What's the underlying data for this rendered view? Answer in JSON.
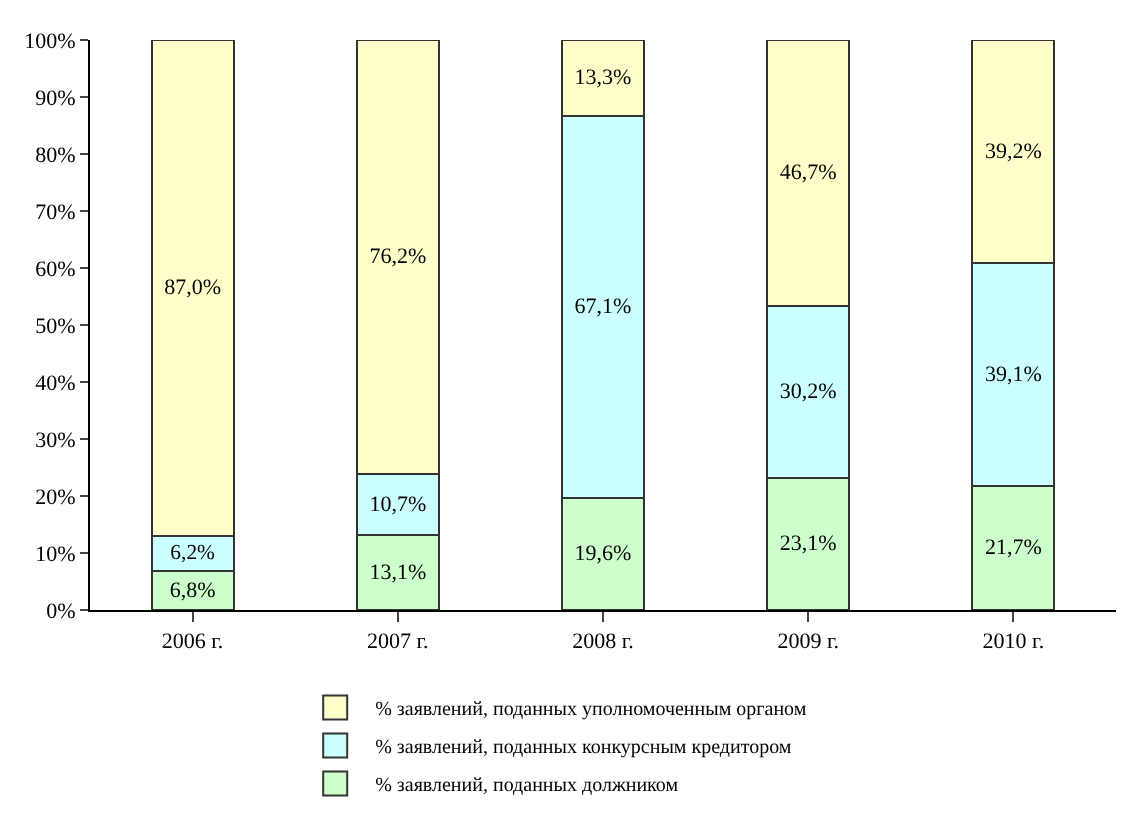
{
  "chart_data": {
    "type": "bar",
    "stacked": true,
    "categories": [
      "2006 г.",
      "2007 г.",
      "2008 г.",
      "2009 г.",
      "2010 г."
    ],
    "series": [
      {
        "name": "% заявлений, поданных должником",
        "color": "#ccffcc",
        "values": [
          6.8,
          13.1,
          19.6,
          23.1,
          21.7
        ],
        "value_labels": [
          "6,8%",
          "13,1%",
          "19,6%",
          "23,1%",
          "21,7%"
        ]
      },
      {
        "name": "% заявлений, поданных конкурсным кредитором",
        "color": "#ccffff",
        "values": [
          6.2,
          10.7,
          67.1,
          30.2,
          39.1
        ],
        "value_labels": [
          "6,2%",
          "10,7%",
          "67,1%",
          "30,2%",
          "39,1%"
        ]
      },
      {
        "name": "% заявлений, поданных уполномоченным органом",
        "color": "#ffffcc",
        "values": [
          87.0,
          76.2,
          13.3,
          46.7,
          39.2
        ],
        "value_labels": [
          "87,0%",
          "76,2%",
          "13,3%",
          "46,7%",
          "39,2%"
        ]
      }
    ],
    "ylim": [
      0,
      100
    ],
    "yticks": [
      {
        "value": 0,
        "label": "0%"
      },
      {
        "value": 10,
        "label": "10%"
      },
      {
        "value": 20,
        "label": "20%"
      },
      {
        "value": 30,
        "label": "30%"
      },
      {
        "value": 40,
        "label": "40%"
      },
      {
        "value": 50,
        "label": "50%"
      },
      {
        "value": 60,
        "label": "60%"
      },
      {
        "value": 70,
        "label": "70%"
      },
      {
        "value": 80,
        "label": "80%"
      },
      {
        "value": 90,
        "label": "90%"
      },
      {
        "value": 100,
        "label": "100%"
      }
    ],
    "grid": false,
    "legend": "bottom"
  }
}
